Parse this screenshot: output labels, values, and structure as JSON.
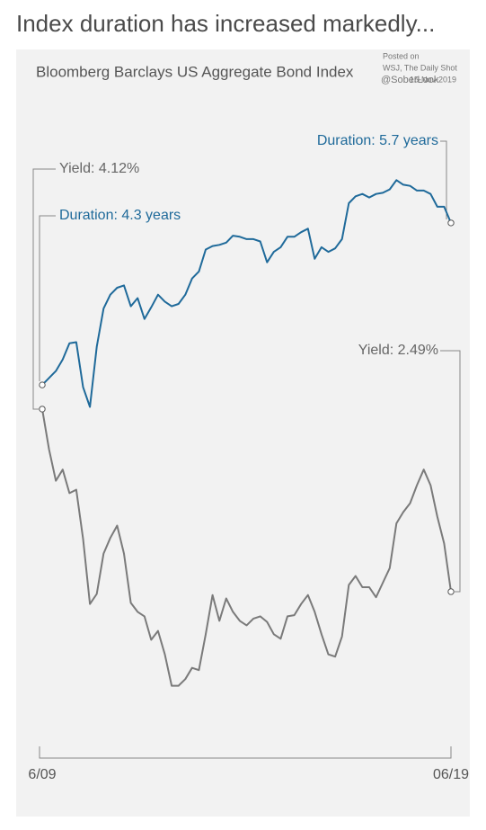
{
  "chart_data": {
    "type": "line",
    "title": "Index duration has increased markedly...",
    "subtitle": "Bloomberg Barclays US Aggregate Bond Index",
    "source": [
      "Posted on",
      "WSJ, The Daily Shot",
      "15-Nov-2019",
      "@SoberLook"
    ],
    "annotations": [
      "Duration: 5.7 years",
      "Yield: 4.12%",
      "Duration: 4.3 years",
      "Yield: 2.49%"
    ],
    "categories": [
      "6/09",
      null,
      null,
      null,
      null,
      null,
      null,
      null,
      null,
      null,
      null,
      null,
      null,
      null,
      null,
      null,
      null,
      null,
      null,
      null,
      null,
      null,
      null,
      null,
      null,
      null,
      null,
      null,
      null,
      null,
      null,
      null,
      null,
      null,
      null,
      null,
      null,
      null,
      null,
      null,
      null,
      null,
      null,
      null,
      null,
      null,
      null,
      null,
      null,
      null,
      null,
      null,
      null,
      null,
      null,
      null,
      null,
      null,
      null,
      null,
      "06/19"
    ],
    "ylim": [
      1.41,
      7.16
    ],
    "y2lim": [
      1.35,
      7.29
    ],
    "series": [
      {
        "name": "Duration",
        "color": "#1f6a9a",
        "values": [
          4.3,
          4.36,
          4.42,
          4.52,
          4.66,
          4.67,
          4.28,
          4.11,
          4.63,
          4.96,
          5.08,
          5.14,
          5.16,
          4.98,
          5.05,
          4.87,
          4.97,
          5.08,
          5.02,
          4.98,
          5.0,
          5.08,
          5.22,
          5.28,
          5.47,
          5.5,
          5.51,
          5.53,
          5.59,
          5.58,
          5.56,
          5.56,
          5.54,
          5.36,
          5.45,
          5.49,
          5.58,
          5.58,
          5.62,
          5.65,
          5.39,
          5.49,
          5.45,
          5.48,
          5.56,
          5.87,
          5.93,
          5.95,
          5.92,
          5.95,
          5.96,
          5.99,
          6.07,
          6.03,
          6.02,
          5.98,
          5.98,
          5.95,
          5.84,
          5.84,
          5.7
        ]
      },
      {
        "name": "Yield",
        "color": "#7a7a7a",
        "axis": "y2",
        "values": [
          4.12,
          3.76,
          3.48,
          3.58,
          3.37,
          3.4,
          2.96,
          2.38,
          2.47,
          2.83,
          2.97,
          3.08,
          2.83,
          2.39,
          2.31,
          2.27,
          2.06,
          2.14,
          1.93,
          1.65,
          1.65,
          1.71,
          1.81,
          1.79,
          2.11,
          2.46,
          2.23,
          2.43,
          2.31,
          2.23,
          2.19,
          2.25,
          2.27,
          2.22,
          2.11,
          2.07,
          2.27,
          2.28,
          2.38,
          2.46,
          2.31,
          2.11,
          1.93,
          1.91,
          2.09,
          2.55,
          2.63,
          2.53,
          2.53,
          2.44,
          2.57,
          2.7,
          3.1,
          3.2,
          3.28,
          3.44,
          3.58,
          3.44,
          3.16,
          2.92,
          2.49
        ]
      }
    ]
  }
}
